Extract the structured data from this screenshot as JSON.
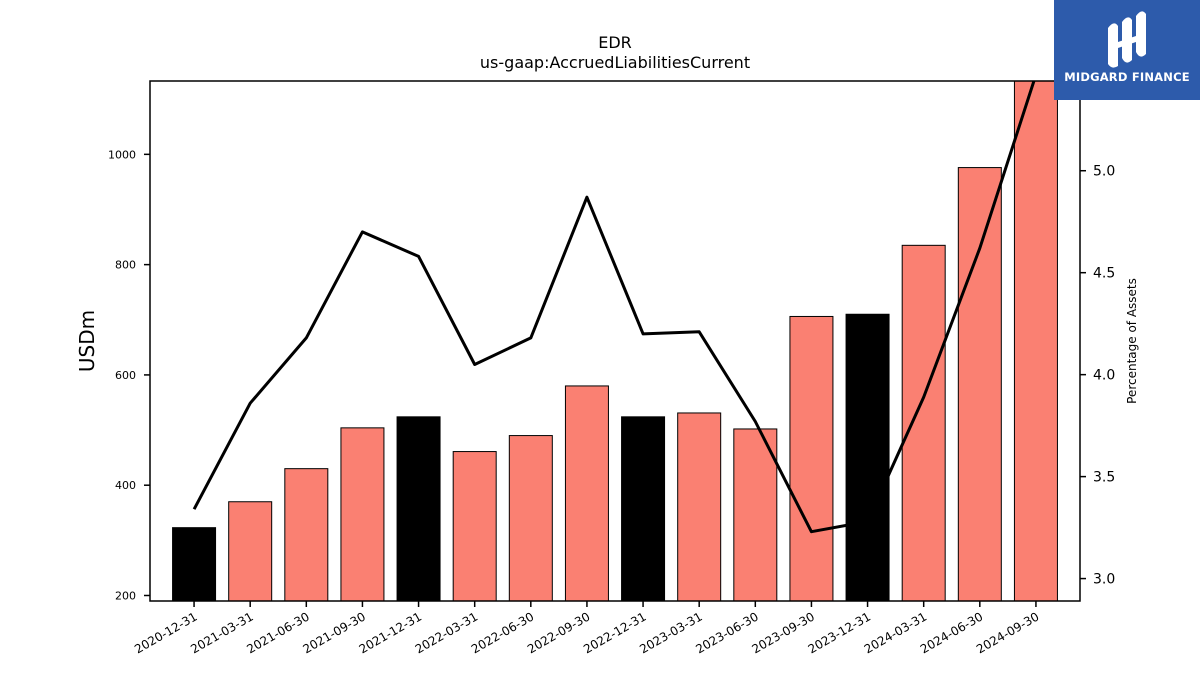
{
  "chart_data": {
    "type": "bar",
    "title": "EDR",
    "subtitle": "us-gaap:AccruedLiabilitiesCurrent",
    "ylabel": "USDm",
    "y2label": "Percentage of Assets",
    "categories": [
      "2020-12-31",
      "2021-03-31",
      "2021-06-30",
      "2021-09-30",
      "2021-12-31",
      "2022-03-31",
      "2022-06-30",
      "2022-09-30",
      "2022-12-31",
      "2023-03-31",
      "2023-06-30",
      "2023-09-30",
      "2023-12-31",
      "2024-03-31",
      "2024-06-30",
      "2024-09-30"
    ],
    "series": [
      {
        "type": "bar",
        "values": [
          323,
          370,
          430,
          504,
          524,
          461,
          490,
          580,
          524,
          531,
          502,
          706,
          710,
          835,
          976,
          1140
        ],
        "colors": [
          "#000000",
          "#fa8072",
          "#fa8072",
          "#fa8072",
          "#000000",
          "#fa8072",
          "#fa8072",
          "#fa8072",
          "#000000",
          "#fa8072",
          "#fa8072",
          "#fa8072",
          "#000000",
          "#fa8072",
          "#fa8072",
          "#fa8072"
        ]
      },
      {
        "type": "line",
        "axis": "right",
        "values": [
          3.34,
          3.86,
          4.18,
          4.7,
          4.58,
          4.05,
          4.18,
          4.87,
          4.2,
          4.21,
          3.77,
          3.23,
          3.28,
          3.89,
          4.62,
          5.47
        ],
        "color": "#000000"
      }
    ],
    "ylim": [
      190,
      1133
    ],
    "y2lim": [
      2.89,
      5.44
    ],
    "yticks": [
      200,
      400,
      600,
      800,
      1000
    ],
    "y2ticks": [
      "3.0",
      "3.5",
      "4.0",
      "4.5",
      "5.0"
    ],
    "grid": false
  },
  "logo": {
    "text": "MIDGARD FINANCE"
  }
}
